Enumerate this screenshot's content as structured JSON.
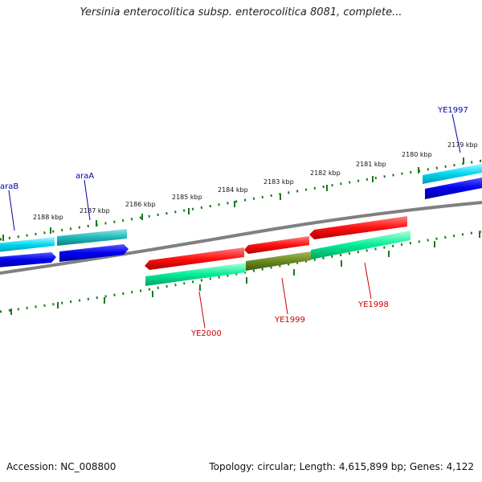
{
  "title": "Yersinia enterocolitica subsp. enterocolitica 8081, complete...",
  "footer": {
    "accession": "Accession: NC_008800",
    "summary": "Topology: circular; Length: 4,615,899 bp; Genes: 4,122"
  },
  "ruler": {
    "labels": [
      "2188 kbp",
      "2187 kbp",
      "2186 kbp",
      "2185 kbp",
      "2184 kbp",
      "2183 kbp",
      "2182 kbp",
      "2181 kbp",
      "2180 kbp",
      "2179 kbp"
    ]
  },
  "genes": {
    "araB": "araB",
    "araA": "araA",
    "YE1997": "YE1997",
    "YE1998": "YE1998",
    "YE1999": "YE1999",
    "YE2000": "YE2000"
  },
  "colors": {
    "gene_forward": "#0000ee",
    "cds_forward": "#00d8ee",
    "gene_reverse": "#ee0000",
    "cds_reverse": "#00ee99",
    "overlap": "#6b8a1f",
    "backbone": "#808080",
    "ticks": "#1a7a1a",
    "label_forward": "#0000aa",
    "label_reverse": "#cc0000"
  }
}
